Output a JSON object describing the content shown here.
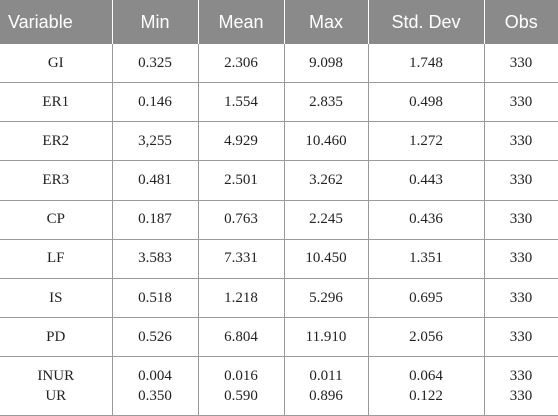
{
  "columns": [
    "Variable",
    "Min",
    "Mean",
    "Max",
    "Std. Dev",
    "Obs"
  ],
  "rows": [
    [
      "GI",
      "0.325",
      "2.306",
      "9.098",
      "1.748",
      "330"
    ],
    [
      "ER1",
      "0.146",
      "1.554",
      "2.835",
      "0.498",
      "330"
    ],
    [
      "ER2",
      "3,255",
      "4.929",
      "10.460",
      "1.272",
      "330"
    ],
    [
      "ER3",
      "0.481",
      "2.501",
      "3.262",
      "0.443",
      "330"
    ],
    [
      "CP",
      "0.187",
      "0.763",
      "2.245",
      "0.436",
      "330"
    ],
    [
      "LF",
      "3.583",
      "7.331",
      "10.450",
      "1.351",
      "330"
    ],
    [
      "IS",
      "0.518",
      "1.218",
      "5.296",
      "0.695",
      "330"
    ],
    [
      "PD",
      "0.526",
      "6.804",
      "11.910",
      "2.056",
      "330"
    ]
  ],
  "last_row": [
    [
      "INUR",
      "UR"
    ],
    [
      "0.004",
      "0.350"
    ],
    [
      "0.016",
      "0.590"
    ],
    [
      "0.011",
      "0.896"
    ],
    [
      "0.064",
      "0.122"
    ],
    [
      "330",
      "330"
    ]
  ]
}
